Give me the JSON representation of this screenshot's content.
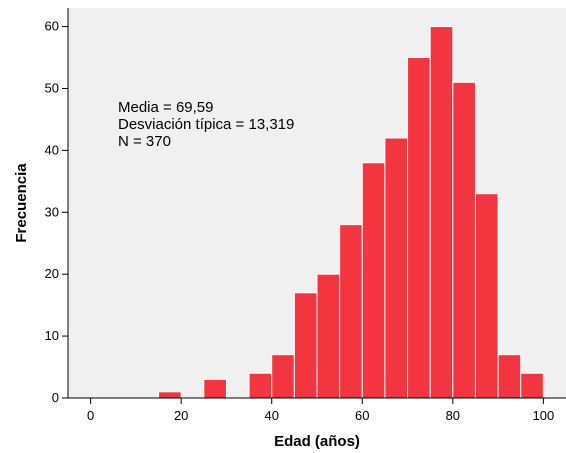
{
  "chart_data": {
    "type": "bar",
    "subtype": "histogram",
    "xlabel": "Edad (años)",
    "ylabel": "Frecuencia",
    "xlim": [
      -5,
      105
    ],
    "ylim": [
      0,
      63
    ],
    "x_ticks": [
      0,
      20,
      40,
      60,
      80,
      100
    ],
    "y_ticks": [
      0,
      10,
      20,
      30,
      40,
      50,
      60
    ],
    "bin_width": 5,
    "bins": [
      {
        "start": 15,
        "end": 20,
        "count": 1
      },
      {
        "start": 25,
        "end": 30,
        "count": 3
      },
      {
        "start": 35,
        "end": 40,
        "count": 4
      },
      {
        "start": 40,
        "end": 45,
        "count": 7
      },
      {
        "start": 45,
        "end": 50,
        "count": 17
      },
      {
        "start": 50,
        "end": 55,
        "count": 20
      },
      {
        "start": 55,
        "end": 60,
        "count": 28
      },
      {
        "start": 60,
        "end": 65,
        "count": 38
      },
      {
        "start": 65,
        "end": 70,
        "count": 42
      },
      {
        "start": 70,
        "end": 75,
        "count": 55
      },
      {
        "start": 75,
        "end": 80,
        "count": 60
      },
      {
        "start": 80,
        "end": 85,
        "count": 51
      },
      {
        "start": 85,
        "end": 90,
        "count": 33
      },
      {
        "start": 90,
        "end": 95,
        "count": 7
      },
      {
        "start": 95,
        "end": 100,
        "count": 4
      }
    ],
    "stats": [
      "Media = 69,59",
      "Desviación típica = 13,319",
      "N = 370"
    ],
    "colors": {
      "bar_fill": "#f2353e",
      "bar_edge": "#ffffff",
      "plot_background": "#f0f0f0",
      "axis": "#000000"
    },
    "grid": false
  }
}
